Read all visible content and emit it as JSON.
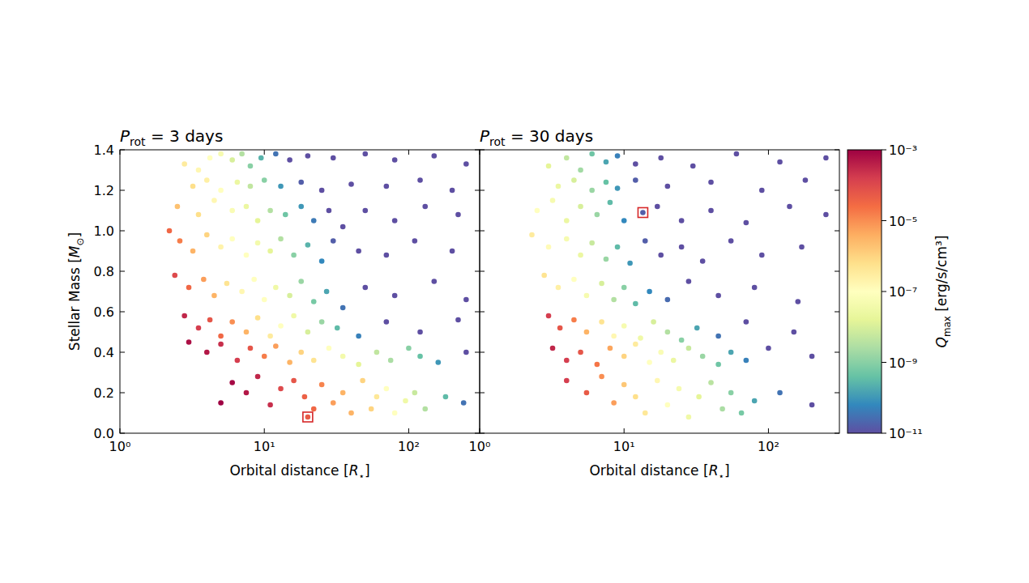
{
  "chart_data": [
    {
      "type": "scatter",
      "title": "Prot = 3 days",
      "x_label": "Orbital distance [R⋆]",
      "y_label": "Stellar Mass [M⊙]",
      "log": "x",
      "xlim": [
        1,
        310
      ],
      "xticks": [
        {
          "value": 1,
          "label": "10⁰"
        },
        {
          "value": 10,
          "label": "10¹"
        },
        {
          "value": 100,
          "label": "10²"
        }
      ],
      "ylim": [
        0,
        1.4
      ],
      "yticks": [
        {
          "value": 0,
          "label": "0.0"
        },
        0.2,
        0.4,
        0.6,
        0.8,
        {
          "value": 1,
          "label": "1.0"
        },
        1.2,
        1.4
      ],
      "x": [
        2.8,
        3.5,
        4.2,
        5,
        6,
        7,
        8,
        9.5,
        12,
        15,
        20,
        30,
        50,
        80,
        150,
        250,
        3.2,
        4,
        5,
        6.5,
        8,
        10,
        13,
        18,
        25,
        40,
        70,
        120,
        200,
        2.5,
        3.5,
        4.5,
        6,
        7.5,
        9,
        11,
        14,
        18,
        22,
        28,
        35,
        50,
        80,
        130,
        220,
        2.2,
        2.6,
        3.2,
        4,
        5,
        6,
        7.5,
        9,
        11,
        13,
        16,
        20,
        25,
        30,
        45,
        70,
        110,
        200,
        2.4,
        3,
        3.8,
        4.5,
        5.5,
        7,
        8.5,
        10,
        12,
        15,
        18,
        22,
        27,
        35,
        50,
        80,
        150,
        250,
        2.8,
        3.5,
        4.2,
        5,
        6,
        7.5,
        9,
        11,
        13,
        16,
        20,
        25,
        32,
        45,
        70,
        120,
        220,
        3,
        4,
        5,
        6.5,
        8,
        10,
        12,
        15,
        18,
        22,
        28,
        35,
        45,
        60,
        75,
        100,
        120,
        160,
        250,
        5,
        6,
        7.5,
        9,
        11,
        13,
        16,
        19,
        22,
        25,
        30,
        35,
        40,
        48,
        55,
        60,
        70,
        80,
        95,
        110,
        130,
        180,
        240,
        20
      ],
      "values": [
        1.33,
        1.3,
        1.36,
        1.38,
        1.35,
        1.38,
        1.32,
        1.36,
        1.38,
        1.35,
        1.37,
        1.36,
        1.38,
        1.35,
        1.37,
        1.33,
        1.22,
        1.25,
        1.2,
        1.24,
        1.22,
        1.25,
        1.22,
        1.24,
        1.2,
        1.23,
        1.22,
        1.25,
        1.2,
        1.12,
        1.08,
        1.15,
        1.1,
        1.12,
        1.05,
        1.1,
        1.08,
        1.12,
        1.05,
        1.1,
        1.02,
        1.1,
        1.05,
        1.12,
        1.08,
        1.0,
        0.95,
        0.9,
        0.98,
        0.92,
        0.96,
        0.88,
        0.94,
        0.9,
        0.96,
        0.88,
        0.93,
        0.85,
        0.95,
        0.9,
        0.88,
        0.95,
        0.9,
        0.78,
        0.72,
        0.76,
        0.68,
        0.74,
        0.7,
        0.76,
        0.66,
        0.72,
        0.68,
        0.75,
        0.65,
        0.7,
        0.62,
        0.72,
        0.68,
        0.75,
        0.66,
        0.58,
        0.52,
        0.56,
        0.48,
        0.55,
        0.5,
        0.57,
        0.48,
        0.53,
        0.58,
        0.5,
        0.55,
        0.52,
        0.48,
        0.55,
        0.5,
        0.56,
        0.45,
        0.4,
        0.44,
        0.36,
        0.42,
        0.38,
        0.43,
        0.35,
        0.4,
        0.36,
        0.42,
        0.38,
        0.34,
        0.4,
        0.36,
        0.42,
        0.38,
        0.35,
        0.4,
        0.15,
        0.25,
        0.2,
        0.28,
        0.14,
        0.22,
        0.26,
        0.18,
        0.12,
        0.24,
        0.15,
        0.2,
        0.1,
        0.26,
        0.12,
        0.18,
        0.22,
        0.1,
        0.16,
        0.2,
        0.12,
        0.18,
        0.15,
        0.08
      ],
      "q": [
        3.2e-07,
        1.6e-07,
        1e-07,
        5e-08,
        1e-08,
        3.2e-09,
        1e-09,
        2.5e-10,
        3.2e-11,
        1e-11,
        1e-11,
        1e-11,
        1e-11,
        1e-11,
        1e-11,
        1e-11,
        6.3e-07,
        2.5e-07,
        1e-07,
        2.5e-08,
        5e-09,
        1e-09,
        1e-10,
        1.6e-11,
        1e-11,
        1e-11,
        1e-11,
        1e-11,
        1e-11,
        2e-06,
        6.3e-07,
        1.6e-07,
        6.3e-08,
        2.5e-08,
        1.6e-08,
        3.2e-09,
        5e-10,
        1e-10,
        4e-11,
        1e-11,
        1e-11,
        1e-11,
        1e-11,
        1e-11,
        1e-11,
        3.2e-05,
        1.6e-05,
        3.2e-06,
        1e-06,
        2e-07,
        1e-07,
        1e-07,
        4e-08,
        1.6e-08,
        3.2e-09,
        1e-09,
        2.5e-10,
        6.3e-11,
        1.6e-11,
        1e-11,
        1e-11,
        1e-11,
        1e-11,
        0.0001,
        3.2e-05,
        6.3e-06,
        3.2e-06,
        5e-07,
        1.6e-07,
        1e-07,
        1e-07,
        3.2e-08,
        1e-08,
        1.6e-09,
        6.3e-10,
        1.6e-10,
        3.2e-11,
        1e-11,
        1e-11,
        1e-11,
        1e-11,
        0.00032,
        0.00016,
        6.3e-05,
        3.2e-05,
        1e-05,
        3.2e-06,
        6.3e-07,
        3.2e-07,
        1e-07,
        3.2e-08,
        1e-08,
        1.6e-09,
        3.2e-10,
        5e-11,
        1e-11,
        1e-11,
        1e-11,
        0.00063,
        0.0005,
        0.00025,
        0.00016,
        6.3e-05,
        1.6e-05,
        6.3e-06,
        3.2e-06,
        1e-06,
        5e-07,
        1e-07,
        4e-08,
        1.6e-08,
        5e-09,
        2.5e-09,
        1e-09,
        4e-10,
        1e-10,
        1e-11,
        0.001,
        0.00079,
        0.0005,
        0.00032,
        0.00025,
        0.0001,
        6.3e-05,
        4e-05,
        3.2e-05,
        1.3e-05,
        6.3e-06,
        3.2e-06,
        3.2e-06,
        1e-06,
        1e-06,
        4e-07,
        1e-07,
        1e-07,
        3.2e-08,
        6.3e-09,
        3.2e-09,
        3.2e-10,
        3.2e-11,
        5e-05
      ],
      "highlight": {
        "x": 20,
        "y": 0.08
      }
    },
    {
      "type": "scatter",
      "title": "Prot = 30 days",
      "x_label": "Orbital distance [R⋆]",
      "log": "x",
      "tick_labels": "x",
      "xlim": [
        1,
        310
      ],
      "xticks": [
        {
          "value": 1,
          "label": "10⁰"
        },
        {
          "value": 10,
          "label": "10¹"
        },
        {
          "value": 100,
          "label": "10²"
        }
      ],
      "ylim": [
        0,
        1.4
      ],
      "yticks": [
        0,
        0.2,
        0.4,
        0.6,
        0.8,
        1,
        1.2,
        1.4
      ],
      "x": [
        3,
        4,
        5,
        6,
        7.5,
        9,
        12,
        18,
        30,
        60,
        120,
        250,
        3.5,
        4.5,
        6,
        7.5,
        9,
        12,
        20,
        40,
        90,
        180,
        2.5,
        3.2,
        4,
        5,
        6.5,
        8,
        10,
        13.5,
        17,
        25,
        40,
        70,
        140,
        250,
        2.3,
        3,
        4,
        5,
        6,
        7.5,
        9,
        11,
        14,
        18,
        25,
        35,
        55,
        90,
        170,
        2.8,
        3.5,
        4.5,
        5.5,
        7,
        8.5,
        10,
        12,
        15,
        20,
        28,
        45,
        80,
        160,
        3,
        3.6,
        4.5,
        5.5,
        7,
        8.5,
        10,
        13,
        16,
        20,
        25,
        32,
        45,
        70,
        150,
        3.2,
        4,
        5,
        6.5,
        8,
        10,
        12,
        15,
        18,
        22,
        28,
        35,
        45,
        55,
        70,
        100,
        200,
        4,
        5.5,
        7,
        8.5,
        10,
        12,
        14,
        17,
        20,
        24,
        28,
        33,
        40,
        48,
        55,
        65,
        80,
        120,
        200
      ],
      "values": [
        1.32,
        1.36,
        1.3,
        1.38,
        1.34,
        1.37,
        1.33,
        1.36,
        1.32,
        1.38,
        1.34,
        1.36,
        1.22,
        1.25,
        1.2,
        1.24,
        1.21,
        1.25,
        1.22,
        1.24,
        1.2,
        1.25,
        1.1,
        1.15,
        1.05,
        1.12,
        1.08,
        1.14,
        1.05,
        1.09,
        1.12,
        1.05,
        1.1,
        1.04,
        1.12,
        1.08,
        0.98,
        0.92,
        0.96,
        0.88,
        0.94,
        0.86,
        0.92,
        0.84,
        0.95,
        0.88,
        0.92,
        0.85,
        0.95,
        0.88,
        0.92,
        0.78,
        0.72,
        0.76,
        0.68,
        0.74,
        0.66,
        0.72,
        0.64,
        0.7,
        0.66,
        0.75,
        0.68,
        0.72,
        0.65,
        0.58,
        0.52,
        0.56,
        0.5,
        0.55,
        0.48,
        0.53,
        0.47,
        0.55,
        0.5,
        0.46,
        0.52,
        0.48,
        0.55,
        0.5,
        0.42,
        0.36,
        0.4,
        0.34,
        0.42,
        0.38,
        0.44,
        0.35,
        0.4,
        0.36,
        0.42,
        0.38,
        0.34,
        0.4,
        0.36,
        0.42,
        0.38,
        0.26,
        0.2,
        0.28,
        0.15,
        0.24,
        0.18,
        0.1,
        0.26,
        0.14,
        0.22,
        0.08,
        0.18,
        0.25,
        0.12,
        0.2,
        0.1,
        0.16,
        0.2,
        0.14
      ],
      "q": [
        1.6e-08,
        5e-09,
        2e-09,
        5e-10,
        1.6e-10,
        5e-11,
        1e-11,
        1e-11,
        1e-11,
        1e-11,
        1e-11,
        1e-11,
        2.5e-08,
        1e-08,
        1.6e-09,
        4e-10,
        1e-10,
        1.6e-11,
        1e-11,
        1e-11,
        1e-11,
        1e-11,
        1e-07,
        5e-08,
        2.5e-08,
        1e-08,
        1.6e-09,
        3.2e-10,
        6.3e-11,
        1.6e-11,
        1e-11,
        1e-11,
        1e-11,
        1e-11,
        1e-11,
        1e-11,
        3.2e-07,
        1.3e-07,
        5e-08,
        2.5e-08,
        6.3e-09,
        1.6e-09,
        3.2e-10,
        1e-10,
        1.6e-11,
        1e-11,
        1e-11,
        1e-11,
        1e-11,
        1e-11,
        1e-11,
        5e-07,
        2.5e-07,
        1e-07,
        5e-08,
        1e-08,
        3.2e-09,
        1e-09,
        3.2e-10,
        6.3e-11,
        2.5e-11,
        1e-11,
        1e-11,
        1e-11,
        1e-11,
        0.00016,
        6.3e-05,
        1.6e-05,
        3.2e-06,
        5e-07,
        1.6e-07,
        5e-08,
        3.2e-08,
        1e-08,
        3.2e-09,
        1e-09,
        1.6e-10,
        3.2e-11,
        1e-11,
        1e-11,
        0.00032,
        0.00016,
        6.3e-05,
        2e-05,
        5e-06,
        1e-06,
        3.2e-07,
        1e-07,
        6.3e-08,
        2.5e-08,
        6.3e-09,
        1.6e-09,
        5e-10,
        1.6e-10,
        5e-11,
        1e-11,
        1e-11,
        0.00016,
        5e-05,
        1e-05,
        6.3e-06,
        1.6e-06,
        6.3e-07,
        4e-07,
        1.6e-07,
        1e-07,
        5e-08,
        3.2e-08,
        1.6e-08,
        4e-09,
        2.5e-09,
        1e-09,
        6.3e-10,
        1.6e-10,
        3.2e-11,
        1e-11
      ],
      "highlight": {
        "x": 13.5,
        "y": 1.09
      },
      "colorbar": {
        "label": "Qmax [erg/s/cm³]",
        "log": true,
        "lim": [
          1e-11,
          0.001
        ],
        "ticks": [
          {
            "value": 1e-11,
            "label": "10⁻¹¹"
          },
          {
            "value": 1e-09,
            "label": "10⁻⁹"
          },
          {
            "value": 1e-07,
            "label": "10⁻⁷"
          },
          {
            "value": 1e-05,
            "label": "10⁻⁵"
          },
          {
            "value": 0.001,
            "label": "10⁻³"
          }
        ]
      }
    }
  ]
}
